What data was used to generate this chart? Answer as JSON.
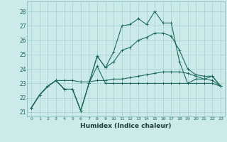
{
  "xlabel": "Humidex (Indice chaleur)",
  "xlim": [
    -0.5,
    23.5
  ],
  "ylim": [
    20.7,
    28.7
  ],
  "yticks": [
    21,
    22,
    23,
    24,
    25,
    26,
    27,
    28
  ],
  "xticks": [
    0,
    1,
    2,
    3,
    4,
    5,
    6,
    7,
    8,
    9,
    10,
    11,
    12,
    13,
    14,
    15,
    16,
    17,
    18,
    19,
    20,
    21,
    22,
    23
  ],
  "bg_color": "#cceae8",
  "grid_color": "#aad4d0",
  "line_color": "#1d6b5e",
  "series": [
    [
      21.3,
      22.2,
      22.8,
      23.2,
      22.6,
      22.6,
      21.1,
      23.0,
      24.2,
      23.0,
      23.0,
      23.0,
      23.0,
      23.0,
      23.0,
      23.0,
      23.0,
      23.0,
      23.0,
      23.0,
      23.0,
      23.0,
      23.0,
      22.8
    ],
    [
      21.3,
      22.2,
      22.8,
      23.2,
      22.6,
      22.6,
      21.1,
      23.0,
      24.9,
      24.1,
      25.2,
      27.0,
      27.1,
      27.5,
      27.1,
      28.0,
      27.2,
      27.2,
      24.5,
      23.0,
      23.3,
      23.3,
      23.5,
      22.8
    ],
    [
      21.3,
      22.2,
      22.8,
      23.2,
      22.6,
      22.6,
      21.1,
      23.0,
      24.9,
      24.1,
      24.5,
      25.3,
      25.5,
      26.0,
      26.2,
      26.5,
      26.5,
      26.3,
      25.3,
      24.0,
      23.6,
      23.5,
      23.5,
      22.8
    ],
    [
      21.3,
      22.2,
      22.8,
      23.2,
      23.2,
      23.2,
      23.1,
      23.1,
      23.2,
      23.2,
      23.3,
      23.3,
      23.4,
      23.5,
      23.6,
      23.7,
      23.8,
      23.8,
      23.8,
      23.7,
      23.5,
      23.3,
      23.2,
      22.8
    ]
  ]
}
